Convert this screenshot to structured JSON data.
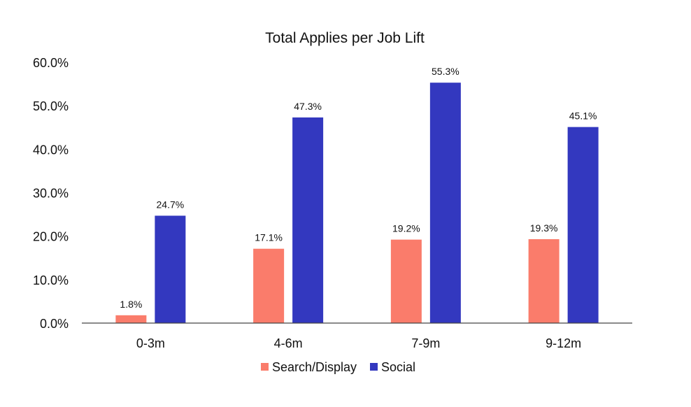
{
  "chart_data": {
    "type": "bar",
    "title": "Total Applies per Job Lift",
    "categories": [
      "0-3m",
      "4-6m",
      "7-9m",
      "9-12m"
    ],
    "series": [
      {
        "name": "Search/Display",
        "color": "#fa7c6b",
        "values": [
          1.8,
          17.1,
          19.2,
          19.3
        ],
        "labels": [
          "1.8%",
          "17.1%",
          "19.2%",
          "19.3%"
        ]
      },
      {
        "name": "Social",
        "color": "#3338bf",
        "values": [
          24.7,
          47.3,
          55.3,
          45.1
        ],
        "labels": [
          "24.7%",
          "47.3%",
          "55.3%",
          "45.1%"
        ]
      }
    ],
    "ylim": [
      0,
      60
    ],
    "yticks": [
      0,
      10,
      20,
      30,
      40,
      50,
      60
    ],
    "ytick_labels": [
      "0.0%",
      "10.0%",
      "20.0%",
      "30.0%",
      "40.0%",
      "50.0%",
      "60.0%"
    ],
    "xlabel": "",
    "ylabel": "",
    "grid": false,
    "legend_position": "bottom"
  }
}
